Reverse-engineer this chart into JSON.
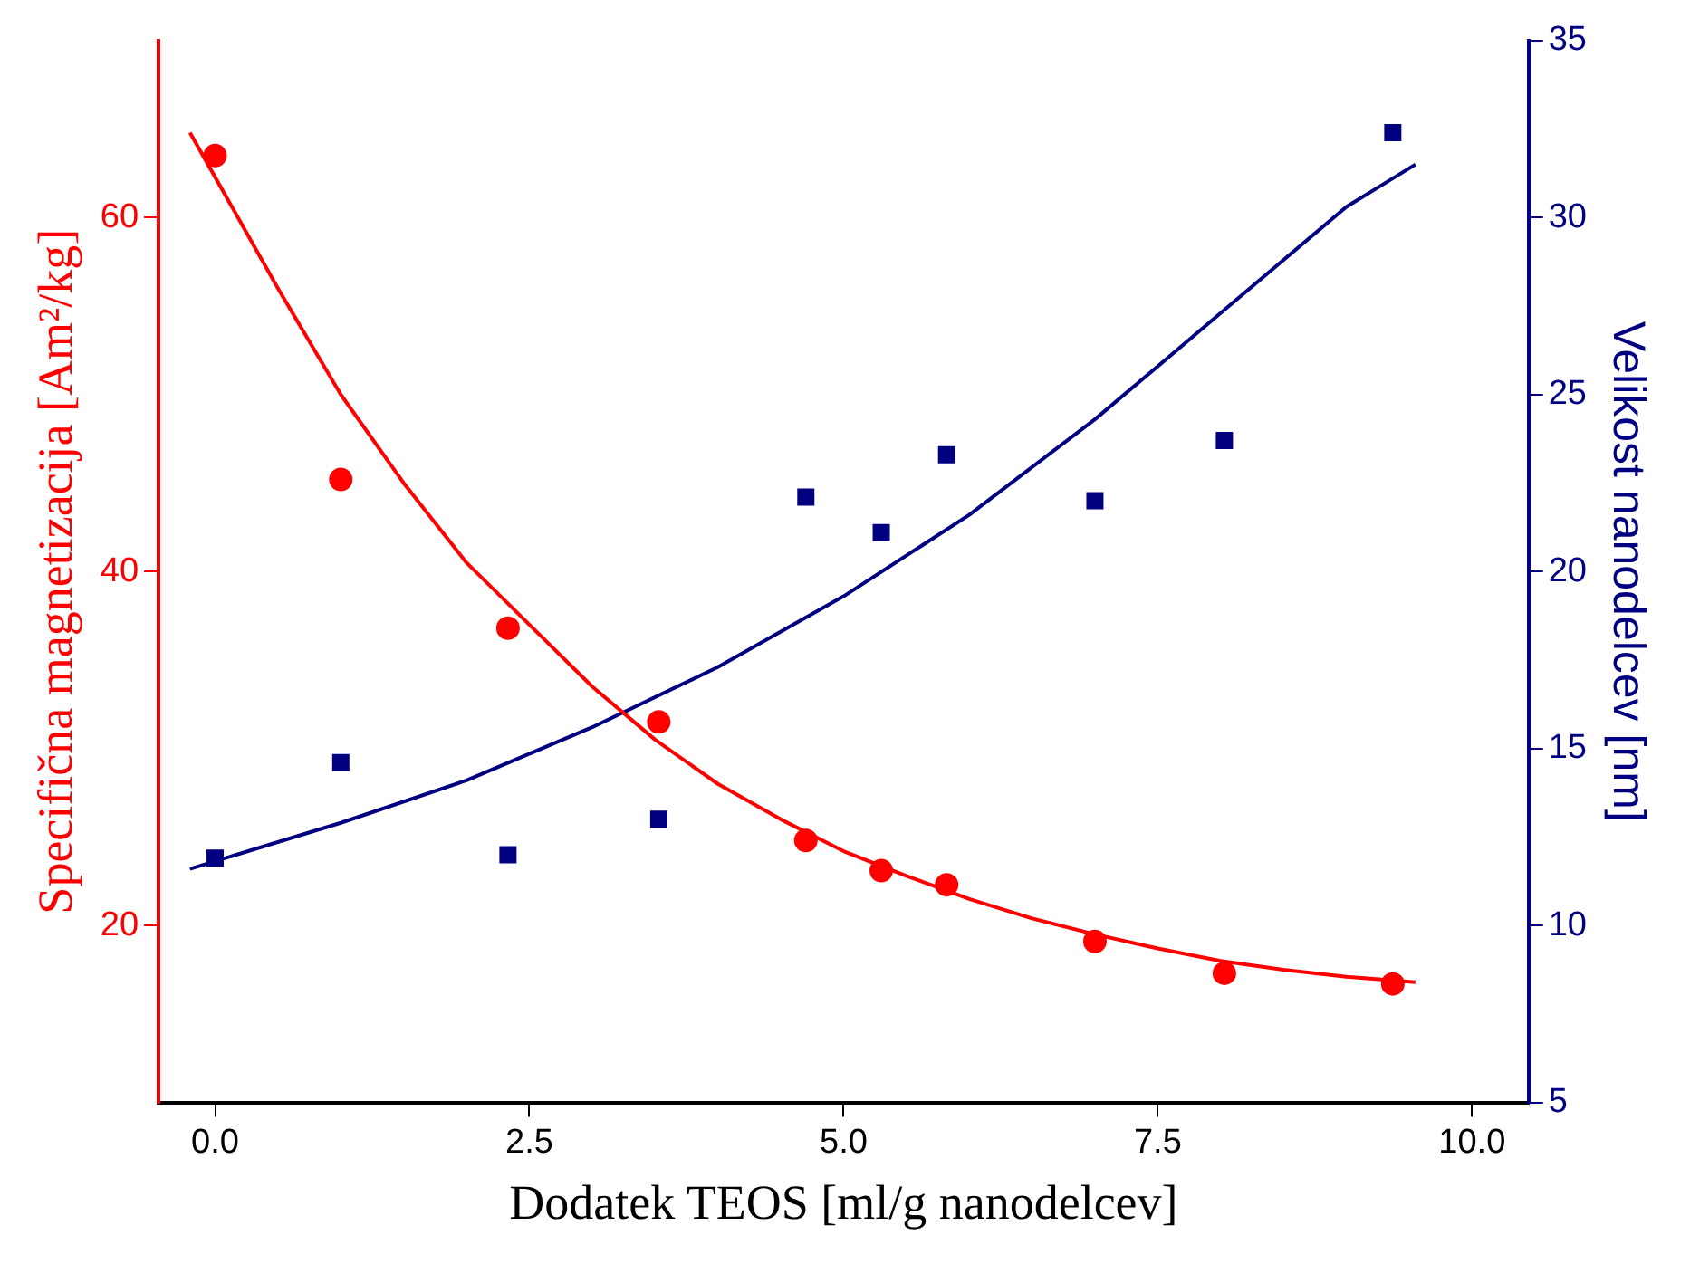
{
  "chart_data": {
    "type": "scatter",
    "xlabel": "Dodatek TEOS [ml/g nanodelcev]",
    "ylabel": "Specifična magnetizacija [Am²/kg]",
    "y2label": "Velikost nanodelcev [nm]",
    "xlim": [
      -0.45,
      10.45
    ],
    "xticks": [
      {
        "value": 0,
        "label": "0.0"
      },
      {
        "value": 2.5,
        "label": "2.5"
      },
      {
        "value": 5,
        "label": "5.0"
      },
      {
        "value": 7.5,
        "label": "7.5"
      },
      {
        "value": 10,
        "label": "10.0"
      }
    ],
    "ylim": [
      10,
      70
    ],
    "yticks": [
      20,
      40,
      60
    ],
    "y2lim": [
      5,
      35
    ],
    "y2ticks": [
      5,
      10,
      15,
      20,
      25,
      30,
      35
    ],
    "grid": false,
    "legend": false,
    "series": [
      {
        "type": "scatter",
        "axis": "y",
        "color": "#ff0000",
        "marker": "circle",
        "x": [
          0,
          1,
          2.33,
          3.53,
          4.7,
          5.3,
          5.82,
          7,
          8.03,
          9.37
        ],
        "values": [
          63.5,
          45.2,
          36.8,
          31.5,
          24.8,
          23.1,
          22.3,
          19.1,
          17.3,
          16.7
        ]
      },
      {
        "type": "line",
        "axis": "y",
        "color": "#ff0000",
        "marker": "none",
        "line_style": "solid",
        "x": [
          -0.2,
          0.5,
          1,
          1.5,
          2,
          2.5,
          3,
          3.5,
          4,
          4.5,
          5,
          5.5,
          6,
          6.5,
          7,
          7.5,
          8,
          8.5,
          9,
          9.55
        ],
        "values": [
          64.8,
          56,
          50,
          45,
          40.5,
          37,
          33.5,
          30.5,
          28,
          26,
          24.2,
          22.8,
          21.5,
          20.4,
          19.5,
          18.7,
          18,
          17.5,
          17.1,
          16.8
        ]
      },
      {
        "type": "scatter",
        "axis": "y2",
        "color": "#000080",
        "marker": "square",
        "x": [
          0,
          1,
          2.33,
          3.53,
          4.7,
          5.3,
          5.82,
          7,
          8.03,
          9.37
        ],
        "values": [
          11.9,
          14.6,
          12,
          13,
          22.1,
          21.1,
          23.3,
          22,
          23.7,
          32.4
        ]
      },
      {
        "type": "line",
        "axis": "y2",
        "color": "#000080",
        "marker": "none",
        "line_style": "solid",
        "x": [
          -0.2,
          1,
          2,
          3,
          4,
          5,
          6,
          7,
          8,
          9,
          9.55
        ],
        "values": [
          11.6,
          12.9,
          14.1,
          15.6,
          17.3,
          19.3,
          21.6,
          24.3,
          27.3,
          30.3,
          31.5
        ]
      }
    ]
  }
}
